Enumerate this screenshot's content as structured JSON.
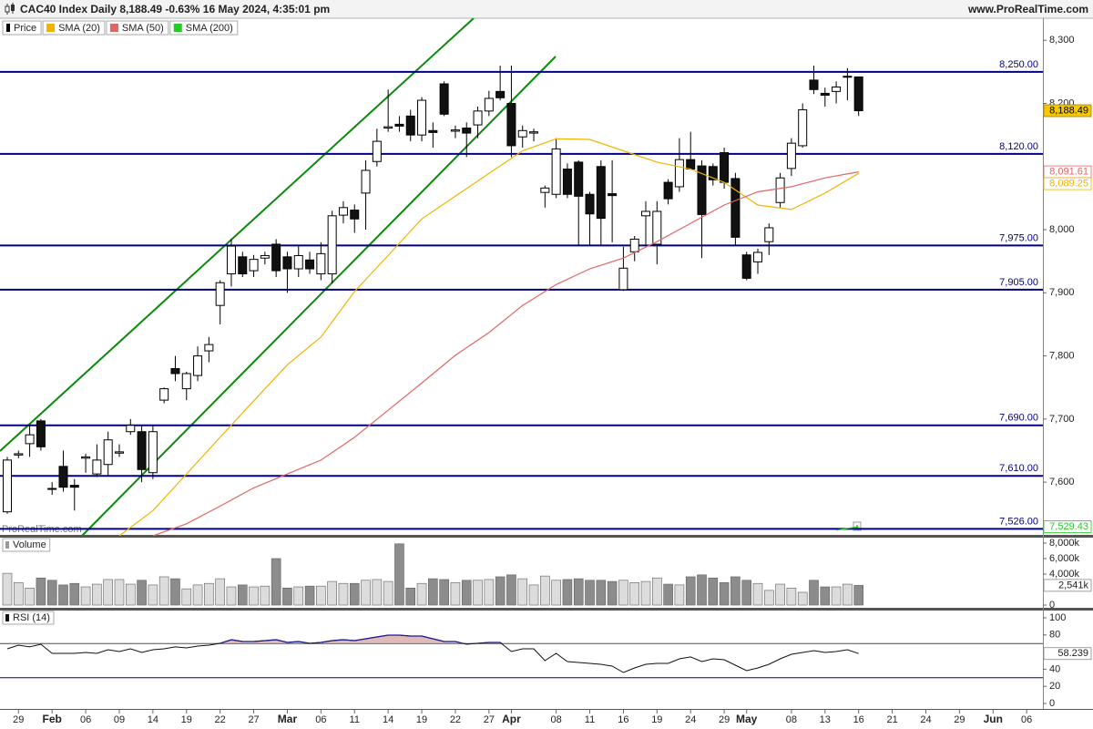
{
  "chart_data": [
    {
      "type": "candlestick",
      "title": "CAC40 Index Daily 8,188.49 -0.63% 16 May 2024, 4:35:01 pm",
      "source": "www.ProRealTime.com",
      "watermark": "ProRealTime.com",
      "xlim": [
        -0.65,
        92.45
      ],
      "xticks": [
        {
          "value": 1,
          "label": "29"
        },
        {
          "value": 4,
          "label": "Feb"
        },
        {
          "value": 7,
          "label": "06"
        },
        {
          "value": 10,
          "label": "09"
        },
        {
          "value": 13,
          "label": "14"
        },
        {
          "value": 16,
          "label": "19"
        },
        {
          "value": 19,
          "label": "22"
        },
        {
          "value": 22,
          "label": "27"
        },
        {
          "value": 25,
          "label": "Mar"
        },
        {
          "value": 28,
          "label": "06"
        },
        {
          "value": 31,
          "label": "11"
        },
        {
          "value": 34,
          "label": "14"
        },
        {
          "value": 37,
          "label": "19"
        },
        {
          "value": 40,
          "label": "22"
        },
        {
          "value": 43,
          "label": "27"
        },
        {
          "value": 45,
          "label": "Apr"
        },
        {
          "value": 49,
          "label": "08"
        },
        {
          "value": 52,
          "label": "11"
        },
        {
          "value": 55,
          "label": "16"
        },
        {
          "value": 58,
          "label": "19"
        },
        {
          "value": 61,
          "label": "24"
        },
        {
          "value": 64,
          "label": "29"
        },
        {
          "value": 66,
          "label": "May"
        },
        {
          "value": 70,
          "label": "08"
        },
        {
          "value": 73,
          "label": "13"
        },
        {
          "value": 76,
          "label": "16"
        },
        {
          "value": 79,
          "label": "21"
        },
        {
          "value": 82,
          "label": "24"
        },
        {
          "value": 85,
          "label": "29"
        },
        {
          "value": 88,
          "label": "Jun"
        },
        {
          "value": 91,
          "label": "06"
        }
      ],
      "ylim": [
        7515,
        8335
      ],
      "yticks": [
        {
          "value": 7600,
          "label": "7,600"
        },
        {
          "value": 7700,
          "label": "7,700"
        },
        {
          "value": 7800,
          "label": "7,800"
        },
        {
          "value": 7900,
          "label": "7,900"
        },
        {
          "value": 8000,
          "label": "8,000"
        },
        {
          "value": 8200,
          "label": "8,200"
        },
        {
          "value": 8300,
          "label": "8,300"
        }
      ],
      "levels": [
        {
          "value": 8250,
          "label": "8,250.00"
        },
        {
          "value": 8120,
          "label": "8,120.00"
        },
        {
          "value": 7975,
          "label": "7,975.00"
        },
        {
          "value": 7905,
          "label": "7,905.00"
        },
        {
          "value": 7690,
          "label": "7,690.00"
        },
        {
          "value": 7610,
          "label": "7,610.00"
        },
        {
          "value": 7526,
          "label": "7,526.00"
        }
      ],
      "series": [
        {
          "name": "Price",
          "color": "#000000",
          "open": [
            7553,
            7643,
            7661,
            7697,
            7590,
            7625,
            7595,
            7638,
            7613,
            7628,
            7646,
            7680,
            7680,
            7615,
            7730,
            7780,
            7748,
            7769,
            7808,
            7880,
            7930,
            7957,
            7935,
            7955,
            7977,
            7957,
            7938,
            7952,
            7930,
            7930,
            8023,
            8031,
            8058,
            8108,
            8161,
            8167,
            8180,
            8150,
            8157,
            8231,
            8156,
            8161,
            8166,
            8188,
            8219,
            8200,
            8147,
            8153,
            8059,
            8056,
            8096,
            8107,
            8056,
            8100,
            8057,
            7905,
            7965,
            8022,
            7977,
            8075,
            8068,
            8111,
            8101,
            8100,
            8122,
            8081,
            7960,
            7949,
            7981,
            8043,
            8097,
            8133,
            8237,
            8216,
            8219,
            8242,
            8242
          ],
          "high": [
            7640,
            7650,
            7690,
            7700,
            7600,
            7650,
            7605,
            7645,
            7660,
            7680,
            7660,
            7700,
            7690,
            7690,
            7750,
            7800,
            7775,
            7815,
            7830,
            7920,
            7985,
            7965,
            7960,
            7965,
            7985,
            7965,
            7975,
            7965,
            7980,
            8030,
            8045,
            8040,
            8110,
            8160,
            8222,
            8180,
            8190,
            8210,
            8170,
            8235,
            8165,
            8170,
            8195,
            8220,
            8260,
            8260,
            8165,
            8160,
            8070,
            8145,
            8105,
            8110,
            8060,
            8110,
            8110,
            7973,
            7990,
            8045,
            8045,
            8080,
            8145,
            8155,
            8110,
            8105,
            8130,
            8090,
            7965,
            7970,
            8010,
            8090,
            8145,
            8200,
            8260,
            8225,
            8235,
            8256,
            8242
          ],
          "low": [
            7550,
            7638,
            7640,
            7650,
            7580,
            7585,
            7555,
            7615,
            7608,
            7610,
            7640,
            7675,
            7600,
            7605,
            7725,
            7760,
            7730,
            7760,
            7790,
            7850,
            7910,
            7925,
            7925,
            7945,
            7925,
            7900,
            7925,
            7930,
            7920,
            7915,
            8010,
            7995,
            8000,
            8100,
            8155,
            8155,
            8140,
            8140,
            8130,
            8180,
            8145,
            8115,
            8145,
            8180,
            8205,
            8115,
            8130,
            8140,
            8035,
            8050,
            8050,
            7975,
            7975,
            7975,
            7980,
            7903,
            7950,
            7975,
            7945,
            8040,
            8060,
            8095,
            7955,
            8070,
            8065,
            7975,
            7920,
            7930,
            7960,
            8035,
            8085,
            8130,
            8215,
            8195,
            8200,
            8205,
            8180
          ],
          "close": [
            7635,
            7645,
            7675,
            7656,
            7589,
            7592,
            7592,
            7640,
            7635,
            7667,
            7648,
            7690,
            7620,
            7680,
            7748,
            7772,
            7772,
            7800,
            7818,
            7916,
            7974,
            7930,
            7953,
            7959,
            7935,
            7938,
            7959,
            7938,
            7962,
            8022,
            8035,
            8017,
            8094,
            8140,
            8163,
            8164,
            8150,
            8205,
            8154,
            8183,
            8158,
            8153,
            8188,
            8208,
            8209,
            8133,
            8157,
            8155,
            8066,
            8128,
            8056,
            8053,
            8025,
            8018,
            8054,
            7939,
            7985,
            8029,
            8029,
            8049,
            8111,
            8096,
            8024,
            8079,
            8075,
            7988,
            7923,
            7964,
            8003,
            8082,
            8137,
            8190,
            8222,
            8213,
            8226,
            8243,
            8188.49
          ],
          "value_labels": [
            null,
            null,
            null,
            null,
            null,
            null,
            null,
            null,
            null,
            null,
            null,
            null,
            null,
            null,
            null,
            null,
            null,
            null,
            null,
            null,
            null,
            null,
            null,
            null,
            null,
            null,
            null,
            null,
            null,
            null,
            null,
            null,
            null,
            null,
            null,
            null,
            null,
            null,
            null,
            null,
            null,
            null,
            null,
            null,
            null,
            null,
            null,
            null,
            null,
            null,
            null,
            null,
            null,
            null,
            null,
            null,
            null,
            null,
            null,
            null,
            null,
            null,
            null,
            null,
            null,
            null,
            null,
            null,
            null,
            null,
            null,
            null,
            null,
            null,
            null,
            null,
            "8,188.49"
          ]
        },
        {
          "name": "SMA (20)",
          "color": "#f0b400",
          "x": [
            10,
            13,
            16,
            19,
            22,
            25,
            28,
            31,
            34,
            37,
            40,
            43,
            46,
            49,
            52,
            55,
            58,
            61,
            64,
            67,
            70,
            73,
            76
          ],
          "values": [
            7515,
            7555,
            7613,
            7671,
            7729,
            7786,
            7830,
            7902,
            7959,
            8017,
            8053,
            8089,
            8125,
            8144,
            8143,
            8125,
            8107,
            8096,
            8075,
            8039,
            8032,
            8058,
            8089.25
          ],
          "value_labels": [
            null,
            null,
            null,
            null,
            null,
            null,
            null,
            null,
            null,
            null,
            null,
            null,
            null,
            null,
            null,
            null,
            null,
            null,
            null,
            null,
            null,
            null,
            "8,089.25"
          ]
        },
        {
          "name": "SMA (50)",
          "color": "#e06666",
          "x": [
            13,
            16,
            19,
            22,
            25,
            28,
            31,
            34,
            37,
            40,
            43,
            46,
            49,
            52,
            55,
            58,
            61,
            64,
            67,
            70,
            73,
            76
          ],
          "values": [
            7515,
            7534,
            7562,
            7591,
            7613,
            7635,
            7671,
            7714,
            7757,
            7801,
            7837,
            7880,
            7913,
            7938,
            7955,
            7981,
            8010,
            8039,
            8060,
            8068,
            8082,
            8091.61
          ],
          "value_labels": [
            null,
            null,
            null,
            null,
            null,
            null,
            null,
            null,
            null,
            null,
            null,
            null,
            null,
            null,
            null,
            null,
            null,
            null,
            null,
            null,
            null,
            "8,091.61"
          ]
        },
        {
          "name": "SMA (200)",
          "color": "#22cc22",
          "x": [
            74,
            76
          ],
          "values": [
            7524,
            7529.43
          ],
          "value_labels": [
            null,
            "7,529.43"
          ]
        }
      ]
    },
    {
      "type": "bar",
      "title": "Volume",
      "ylim": [
        -350,
        8700
      ],
      "yticks": [
        0,
        {
          "value": 4000,
          "label": "4,000k"
        },
        {
          "value": 6000,
          "label": "6,000k"
        },
        {
          "value": 8000,
          "label": "8,000k"
        }
      ],
      "values": [
        4100,
        2900,
        2200,
        3500,
        3200,
        2600,
        2800,
        2350,
        2700,
        3300,
        3300,
        2700,
        3200,
        2600,
        3650,
        3400,
        2100,
        2600,
        2800,
        3400,
        2350,
        2600,
        2350,
        2450,
        6000,
        2200,
        2350,
        2450,
        2450,
        3050,
        2800,
        2800,
        3200,
        3300,
        3050,
        7900,
        2200,
        2800,
        3400,
        3300,
        2900,
        3200,
        3200,
        3300,
        3650,
        3900,
        3400,
        2600,
        3750,
        3200,
        3300,
        3400,
        3200,
        3200,
        3050,
        3200,
        2900,
        3050,
        3500,
        2700,
        2600,
        3650,
        3900,
        3500,
        2900,
        3650,
        3200,
        2800,
        1900,
        2700,
        2200,
        1650,
        3200,
        2350,
        2350,
        2700,
        2541
      ],
      "value_labels": [
        null,
        null,
        null,
        null,
        null,
        null,
        null,
        null,
        null,
        null,
        null,
        null,
        null,
        null,
        null,
        null,
        null,
        null,
        null,
        null,
        null,
        null,
        null,
        null,
        null,
        null,
        null,
        null,
        null,
        null,
        null,
        null,
        null,
        null,
        null,
        null,
        null,
        null,
        null,
        null,
        null,
        null,
        null,
        null,
        null,
        null,
        null,
        null,
        null,
        null,
        null,
        null,
        null,
        null,
        null,
        null,
        null,
        null,
        null,
        null,
        null,
        null,
        null,
        null,
        null,
        null,
        null,
        null,
        null,
        null,
        null,
        null,
        null,
        null,
        null,
        null,
        "2,541k"
      ]
    },
    {
      "type": "line",
      "title": "RSI (14)",
      "ylim": [
        -6.4,
        108.5
      ],
      "yticks": [
        0,
        20,
        40,
        60,
        80,
        100
      ],
      "levels": [
        70,
        30
      ],
      "values": [
        63.8,
        68.1,
        66.0,
        69.1,
        58.5,
        58.5,
        58.5,
        59.6,
        58.5,
        62.8,
        60.6,
        63.8,
        59.6,
        62.8,
        63.8,
        66.0,
        64.9,
        67.0,
        68.1,
        70.2,
        74.5,
        72.3,
        72.3,
        73.4,
        74.5,
        71.3,
        72.3,
        70.2,
        71.3,
        73.4,
        74.5,
        73.4,
        75.5,
        77.7,
        79.8,
        79.8,
        78.7,
        78.7,
        75.5,
        72.3,
        72.3,
        69.1,
        70.2,
        71.3,
        71.3,
        60.6,
        63.8,
        63.8,
        50.0,
        58.5,
        48.9,
        47.9,
        46.8,
        45.7,
        43.6,
        36.2,
        41.5,
        45.7,
        46.8,
        46.8,
        52.1,
        54.3,
        48.9,
        52.1,
        51.1,
        44.7,
        38.3,
        41.5,
        45.7,
        52.1,
        57.4,
        59.6,
        61.7,
        59.6,
        60.6,
        62.8,
        58.239
      ],
      "value_labels": [
        null,
        null,
        null,
        null,
        null,
        null,
        null,
        null,
        null,
        null,
        null,
        null,
        null,
        null,
        null,
        null,
        null,
        null,
        null,
        null,
        null,
        null,
        null,
        null,
        null,
        null,
        null,
        null,
        null,
        null,
        null,
        null,
        null,
        null,
        null,
        null,
        null,
        null,
        null,
        null,
        null,
        null,
        null,
        null,
        null,
        null,
        null,
        null,
        null,
        null,
        null,
        null,
        null,
        null,
        null,
        null,
        null,
        null,
        null,
        null,
        null,
        null,
        null,
        null,
        null,
        null,
        null,
        null,
        null,
        null,
        null,
        null,
        null,
        null,
        null,
        null,
        "58.239"
      ]
    }
  ]
}
